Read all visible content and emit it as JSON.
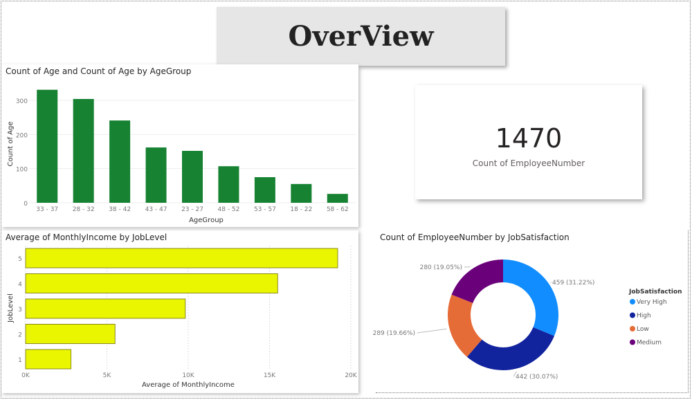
{
  "header": {
    "title": "OverView"
  },
  "kpi": {
    "value": "1470",
    "label": "Count of EmployeeNumber"
  },
  "chart_data": [
    {
      "type": "bar",
      "title": "Count of Age and Count of Age by AgeGroup",
      "xlabel": "AgeGroup",
      "ylabel": "Count of Age",
      "categories": [
        "33 - 37",
        "28 - 32",
        "38 - 42",
        "43 - 47",
        "23 - 27",
        "48 - 52",
        "53 - 57",
        "18 - 22",
        "58 - 62"
      ],
      "values": [
        331,
        304,
        241,
        162,
        152,
        107,
        75,
        55,
        26
      ],
      "ylim": [
        0,
        330
      ],
      "yticks": [
        0,
        100,
        200,
        300
      ],
      "color": "#168232",
      "grid": true
    },
    {
      "type": "bar",
      "orientation": "horizontal",
      "title": "Average of MonthlyIncome by JobLevel",
      "xlabel": "Average of MonthlyIncome",
      "ylabel": "JobLevel",
      "categories": [
        "5",
        "4",
        "3",
        "2",
        "1"
      ],
      "values": [
        19190,
        15500,
        9820,
        5500,
        2790
      ],
      "xlim": [
        0,
        20000
      ],
      "xticks": [
        {
          "v": 0,
          "label": "0K"
        },
        {
          "v": 5000,
          "label": "5K"
        },
        {
          "v": 10000,
          "label": "10K"
        },
        {
          "v": 15000,
          "label": "15K"
        },
        {
          "v": 20000,
          "label": "20K"
        }
      ],
      "color": "#eaf500",
      "grid": true
    },
    {
      "type": "pie",
      "donut": true,
      "title": "Count of EmployeeNumber by JobSatisfaction",
      "legend_title": "JobSatisfaction",
      "legend_position": "right",
      "slices": [
        {
          "name": "Very High",
          "value": 459,
          "label": "459 (31.22%)",
          "color": "#118dff"
        },
        {
          "name": "High",
          "value": 442,
          "label": "442 (30.07%)",
          "color": "#12239e"
        },
        {
          "name": "Low",
          "value": 289,
          "label": "289 (19.66%)",
          "color": "#e66c37"
        },
        {
          "name": "Medium",
          "value": 280,
          "label": "280 (19.05%)",
          "color": "#6b007b"
        }
      ]
    }
  ]
}
